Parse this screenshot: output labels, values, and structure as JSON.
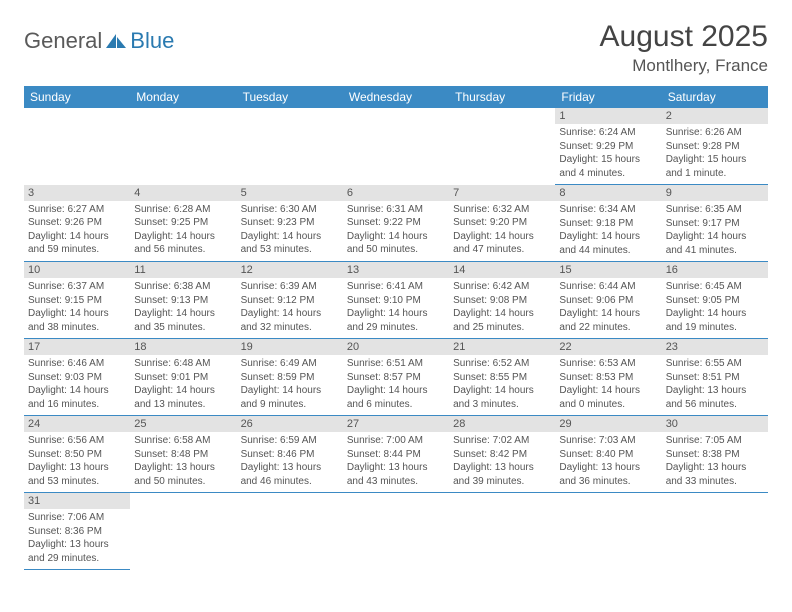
{
  "logo": {
    "text1": "General",
    "text2": "Blue"
  },
  "title": "August 2025",
  "location": "Montlhery, France",
  "colors": {
    "header_bg": "#3b8ac4",
    "header_fg": "#ffffff",
    "daynum_bg": "#e3e3e3",
    "cell_border": "#3b8ac4",
    "text": "#555555",
    "logo_gray": "#5a5a5a",
    "logo_blue": "#2a7ab0"
  },
  "day_headers": [
    "Sunday",
    "Monday",
    "Tuesday",
    "Wednesday",
    "Thursday",
    "Friday",
    "Saturday"
  ],
  "weeks": [
    [
      {
        "empty": true
      },
      {
        "empty": true
      },
      {
        "empty": true
      },
      {
        "empty": true
      },
      {
        "empty": true
      },
      {
        "d": "1",
        "sr": "6:24 AM",
        "ss": "9:29 PM",
        "dl": "15 hours and 4 minutes."
      },
      {
        "d": "2",
        "sr": "6:26 AM",
        "ss": "9:28 PM",
        "dl": "15 hours and 1 minute."
      }
    ],
    [
      {
        "d": "3",
        "sr": "6:27 AM",
        "ss": "9:26 PM",
        "dl": "14 hours and 59 minutes."
      },
      {
        "d": "4",
        "sr": "6:28 AM",
        "ss": "9:25 PM",
        "dl": "14 hours and 56 minutes."
      },
      {
        "d": "5",
        "sr": "6:30 AM",
        "ss": "9:23 PM",
        "dl": "14 hours and 53 minutes."
      },
      {
        "d": "6",
        "sr": "6:31 AM",
        "ss": "9:22 PM",
        "dl": "14 hours and 50 minutes."
      },
      {
        "d": "7",
        "sr": "6:32 AM",
        "ss": "9:20 PM",
        "dl": "14 hours and 47 minutes."
      },
      {
        "d": "8",
        "sr": "6:34 AM",
        "ss": "9:18 PM",
        "dl": "14 hours and 44 minutes."
      },
      {
        "d": "9",
        "sr": "6:35 AM",
        "ss": "9:17 PM",
        "dl": "14 hours and 41 minutes."
      }
    ],
    [
      {
        "d": "10",
        "sr": "6:37 AM",
        "ss": "9:15 PM",
        "dl": "14 hours and 38 minutes."
      },
      {
        "d": "11",
        "sr": "6:38 AM",
        "ss": "9:13 PM",
        "dl": "14 hours and 35 minutes."
      },
      {
        "d": "12",
        "sr": "6:39 AM",
        "ss": "9:12 PM",
        "dl": "14 hours and 32 minutes."
      },
      {
        "d": "13",
        "sr": "6:41 AM",
        "ss": "9:10 PM",
        "dl": "14 hours and 29 minutes."
      },
      {
        "d": "14",
        "sr": "6:42 AM",
        "ss": "9:08 PM",
        "dl": "14 hours and 25 minutes."
      },
      {
        "d": "15",
        "sr": "6:44 AM",
        "ss": "9:06 PM",
        "dl": "14 hours and 22 minutes."
      },
      {
        "d": "16",
        "sr": "6:45 AM",
        "ss": "9:05 PM",
        "dl": "14 hours and 19 minutes."
      }
    ],
    [
      {
        "d": "17",
        "sr": "6:46 AM",
        "ss": "9:03 PM",
        "dl": "14 hours and 16 minutes."
      },
      {
        "d": "18",
        "sr": "6:48 AM",
        "ss": "9:01 PM",
        "dl": "14 hours and 13 minutes."
      },
      {
        "d": "19",
        "sr": "6:49 AM",
        "ss": "8:59 PM",
        "dl": "14 hours and 9 minutes."
      },
      {
        "d": "20",
        "sr": "6:51 AM",
        "ss": "8:57 PM",
        "dl": "14 hours and 6 minutes."
      },
      {
        "d": "21",
        "sr": "6:52 AM",
        "ss": "8:55 PM",
        "dl": "14 hours and 3 minutes."
      },
      {
        "d": "22",
        "sr": "6:53 AM",
        "ss": "8:53 PM",
        "dl": "14 hours and 0 minutes."
      },
      {
        "d": "23",
        "sr": "6:55 AM",
        "ss": "8:51 PM",
        "dl": "13 hours and 56 minutes."
      }
    ],
    [
      {
        "d": "24",
        "sr": "6:56 AM",
        "ss": "8:50 PM",
        "dl": "13 hours and 53 minutes."
      },
      {
        "d": "25",
        "sr": "6:58 AM",
        "ss": "8:48 PM",
        "dl": "13 hours and 50 minutes."
      },
      {
        "d": "26",
        "sr": "6:59 AM",
        "ss": "8:46 PM",
        "dl": "13 hours and 46 minutes."
      },
      {
        "d": "27",
        "sr": "7:00 AM",
        "ss": "8:44 PM",
        "dl": "13 hours and 43 minutes."
      },
      {
        "d": "28",
        "sr": "7:02 AM",
        "ss": "8:42 PM",
        "dl": "13 hours and 39 minutes."
      },
      {
        "d": "29",
        "sr": "7:03 AM",
        "ss": "8:40 PM",
        "dl": "13 hours and 36 minutes."
      },
      {
        "d": "30",
        "sr": "7:05 AM",
        "ss": "8:38 PM",
        "dl": "13 hours and 33 minutes."
      }
    ],
    [
      {
        "d": "31",
        "sr": "7:06 AM",
        "ss": "8:36 PM",
        "dl": "13 hours and 29 minutes."
      },
      {
        "empty": true
      },
      {
        "empty": true
      },
      {
        "empty": true
      },
      {
        "empty": true
      },
      {
        "empty": true
      },
      {
        "empty": true
      }
    ]
  ],
  "labels": {
    "sunrise": "Sunrise:",
    "sunset": "Sunset:",
    "daylight": "Daylight:"
  }
}
